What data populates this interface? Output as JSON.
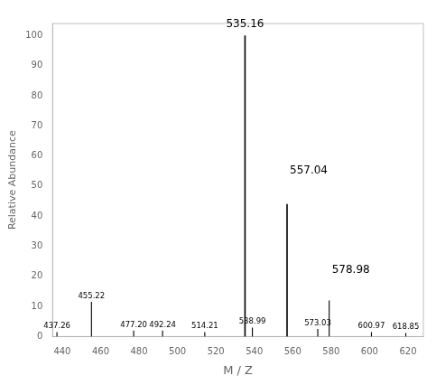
{
  "chart_data": {
    "type": "stem",
    "xlabel": "M / Z",
    "ylabel": "Relative Abundance",
    "x": [
      437.26,
      455.22,
      477.2,
      492.24,
      514.21,
      535.16,
      538.99,
      557.04,
      573.03,
      578.98,
      600.97,
      618.85
    ],
    "values": [
      1.5,
      11.5,
      2.0,
      2.0,
      1.5,
      100.0,
      3.0,
      44.0,
      2.5,
      12.0,
      1.5,
      1.2
    ],
    "color": "black",
    "xlim": [
      435,
      628
    ],
    "ylim": [
      0,
      104
    ],
    "xticks": [
      440,
      460,
      480,
      500,
      520,
      540,
      560,
      580,
      600,
      620
    ],
    "yticks": [
      0,
      10,
      20,
      30,
      40,
      50,
      60,
      70,
      80,
      90,
      100
    ],
    "grid": false,
    "annotations": [
      {
        "text": "437.26",
        "x": 437.26,
        "y": 1.5
      },
      {
        "text": "455.22",
        "x": 455.22,
        "y": 11.5
      },
      {
        "text": "477.20",
        "x": 477.2,
        "y": 2.0
      },
      {
        "text": "492.24",
        "x": 492.24,
        "y": 2.0
      },
      {
        "text": "514.21",
        "x": 514.21,
        "y": 1.5
      },
      {
        "text": "535.16",
        "x": 535.16,
        "y": 100
      },
      {
        "text": "538.99",
        "x": 538.99,
        "y": 3.0
      },
      {
        "text": "557.04",
        "x": 557.04,
        "y": 55
      },
      {
        "text": "573.03",
        "x": 573.03,
        "y": 2.5
      },
      {
        "text": "578.98",
        "x": 578.98,
        "y": 22
      },
      {
        "text": "600.97",
        "x": 600.97,
        "y": 1.5
      },
      {
        "text": "618.85",
        "x": 618.85,
        "y": 1.2
      }
    ]
  }
}
